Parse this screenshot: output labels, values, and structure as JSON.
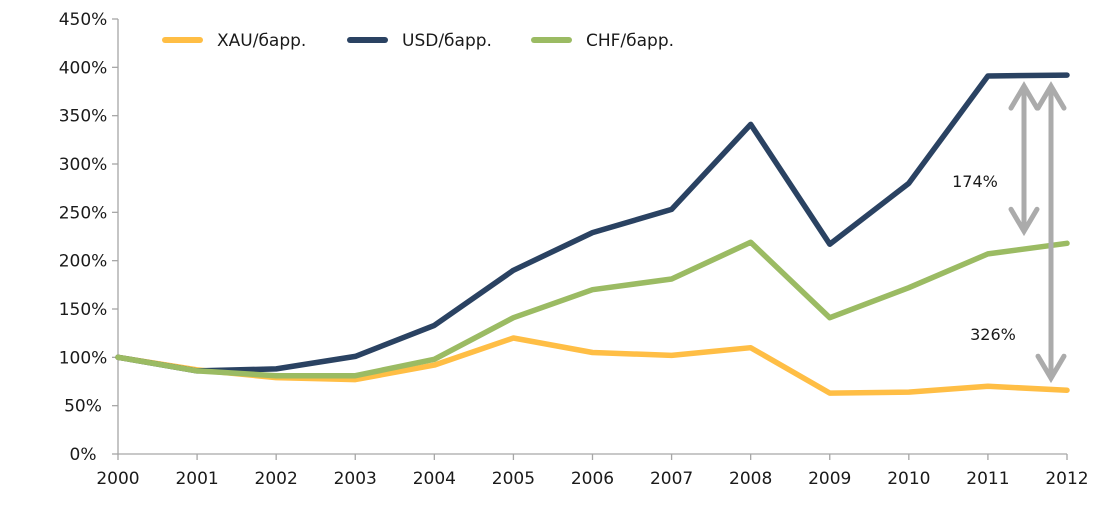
{
  "chart_data": {
    "type": "line",
    "title": "",
    "xlabel": "",
    "ylabel": "",
    "x": [
      "2000",
      "2001",
      "2002",
      "2003",
      "2004",
      "2005",
      "2006",
      "2007",
      "2008",
      "2009",
      "2010",
      "2011",
      "2012"
    ],
    "ylim": [
      0,
      450
    ],
    "yticks": [
      0,
      50,
      100,
      150,
      200,
      250,
      300,
      350,
      400,
      450
    ],
    "ytick_labels": [
      "0%",
      "50%",
      "100%",
      "150%",
      "200%",
      "250%",
      "300%",
      "350%",
      "400%",
      "450%"
    ],
    "grid": false,
    "legend_position": "top-left",
    "series": [
      {
        "name": "XAU/барр.",
        "color": "#FFBE45",
        "values": [
          100,
          87,
          79,
          77,
          92,
          120,
          105,
          102,
          110,
          63,
          64,
          70,
          66
        ]
      },
      {
        "name": "USD/барр.",
        "color": "#2A4262",
        "values": [
          100,
          86,
          88,
          101,
          133,
          190,
          229,
          253,
          341,
          217,
          280,
          391,
          392
        ]
      },
      {
        "name": "CHF/барр.",
        "color": "#9BBB63",
        "values": [
          100,
          86,
          81,
          81,
          98,
          141,
          170,
          181,
          219,
          141,
          172,
          207,
          218
        ]
      }
    ],
    "annotations": [
      {
        "text": "174%",
        "from_series": "USD/барр.",
        "to_series": "CHF/барр.",
        "at_x": "2012",
        "color": "#ABABAB"
      },
      {
        "text": "326%",
        "from_series": "USD/барр.",
        "to_series": "XAU/барр.",
        "at_x": "2012",
        "color": "#ABABAB"
      }
    ],
    "axis_color": "#A6A6A6"
  }
}
